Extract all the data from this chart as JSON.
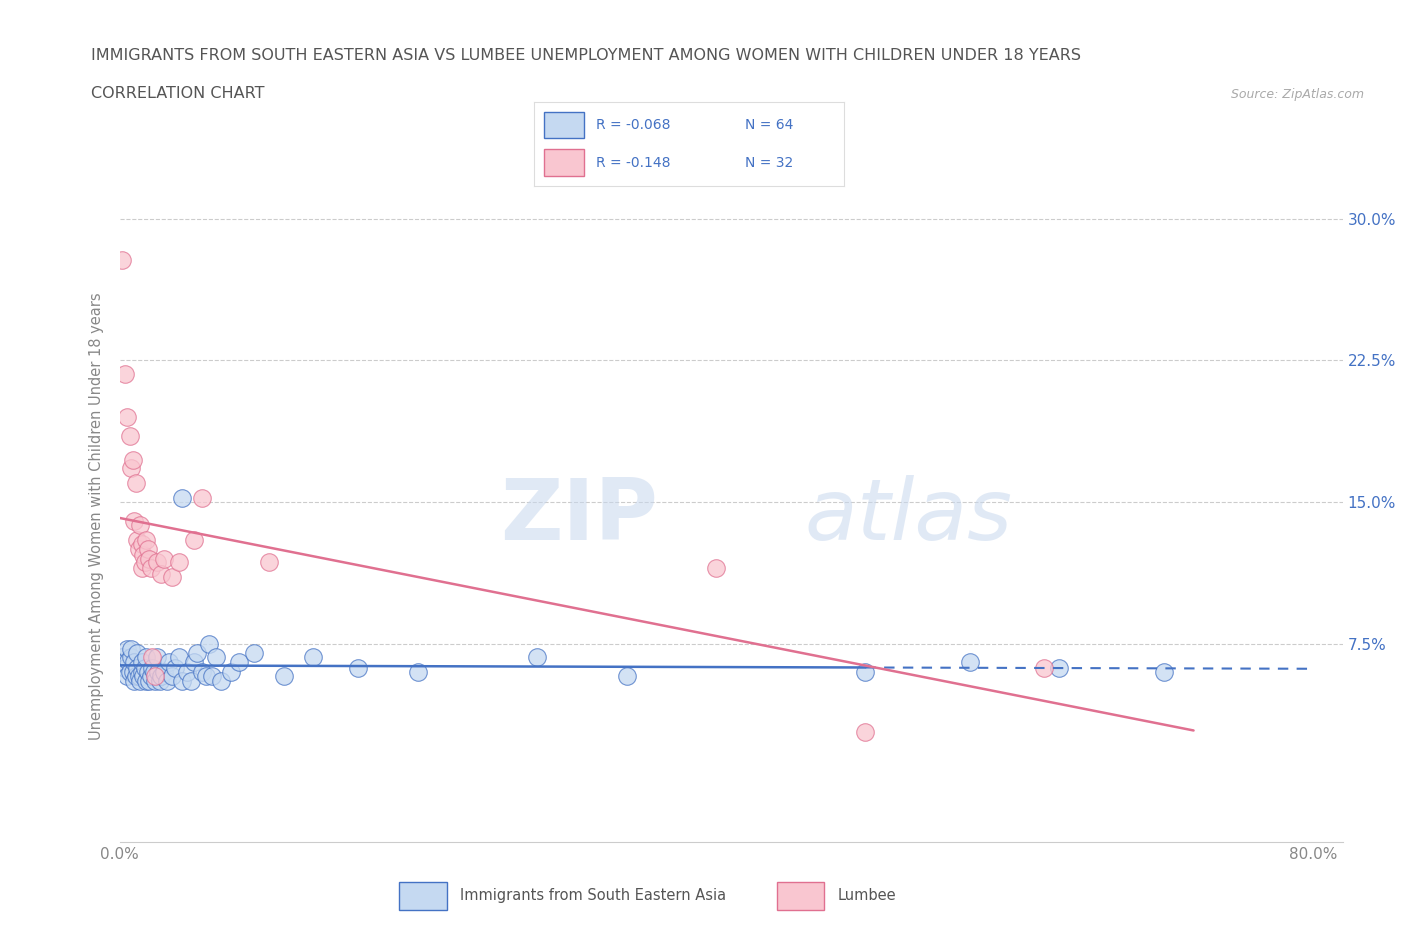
{
  "title_line1": "IMMIGRANTS FROM SOUTH EASTERN ASIA VS LUMBEE UNEMPLOYMENT AMONG WOMEN WITH CHILDREN UNDER 18 YEARS",
  "title_line2": "CORRELATION CHART",
  "source_text": "Source: ZipAtlas.com",
  "ylabel": "Unemployment Among Women with Children Under 18 years",
  "xlim": [
    0.0,
    0.82
  ],
  "ylim": [
    -0.03,
    0.315
  ],
  "ytick_positions": [
    0.075,
    0.15,
    0.225,
    0.3
  ],
  "ytick_labels": [
    "7.5%",
    "15.0%",
    "22.5%",
    "30.0%"
  ],
  "watermark_zip": "ZIP",
  "watermark_atlas": "atlas",
  "legend_blue_r": "-0.068",
  "legend_blue_n": "64",
  "legend_pink_r": "-0.148",
  "legend_pink_n": "32",
  "blue_fill": "#c5d9f1",
  "blue_edge": "#4472c4",
  "pink_fill": "#f9c6d0",
  "pink_edge": "#e07090",
  "blue_line_color": "#4472c4",
  "pink_line_color": "#e07090",
  "blue_scatter": [
    [
      0.002,
      0.068
    ],
    [
      0.003,
      0.065
    ],
    [
      0.004,
      0.062
    ],
    [
      0.005,
      0.058
    ],
    [
      0.005,
      0.072
    ],
    [
      0.006,
      0.066
    ],
    [
      0.007,
      0.06
    ],
    [
      0.008,
      0.068
    ],
    [
      0.008,
      0.072
    ],
    [
      0.009,
      0.06
    ],
    [
      0.01,
      0.065
    ],
    [
      0.01,
      0.055
    ],
    [
      0.011,
      0.058
    ],
    [
      0.012,
      0.07
    ],
    [
      0.012,
      0.062
    ],
    [
      0.013,
      0.058
    ],
    [
      0.014,
      0.055
    ],
    [
      0.015,
      0.06
    ],
    [
      0.015,
      0.065
    ],
    [
      0.016,
      0.058
    ],
    [
      0.017,
      0.062
    ],
    [
      0.018,
      0.068
    ],
    [
      0.018,
      0.055
    ],
    [
      0.019,
      0.06
    ],
    [
      0.02,
      0.055
    ],
    [
      0.021,
      0.058
    ],
    [
      0.022,
      0.062
    ],
    [
      0.023,
      0.06
    ],
    [
      0.024,
      0.055
    ],
    [
      0.025,
      0.068
    ],
    [
      0.026,
      0.06
    ],
    [
      0.027,
      0.055
    ],
    [
      0.028,
      0.058
    ],
    [
      0.03,
      0.06
    ],
    [
      0.032,
      0.055
    ],
    [
      0.033,
      0.065
    ],
    [
      0.035,
      0.058
    ],
    [
      0.037,
      0.062
    ],
    [
      0.04,
      0.068
    ],
    [
      0.042,
      0.055
    ],
    [
      0.042,
      0.152
    ],
    [
      0.045,
      0.06
    ],
    [
      0.048,
      0.055
    ],
    [
      0.05,
      0.065
    ],
    [
      0.052,
      0.07
    ],
    [
      0.055,
      0.06
    ],
    [
      0.058,
      0.058
    ],
    [
      0.06,
      0.075
    ],
    [
      0.062,
      0.058
    ],
    [
      0.065,
      0.068
    ],
    [
      0.068,
      0.055
    ],
    [
      0.075,
      0.06
    ],
    [
      0.08,
      0.065
    ],
    [
      0.09,
      0.07
    ],
    [
      0.11,
      0.058
    ],
    [
      0.13,
      0.068
    ],
    [
      0.16,
      0.062
    ],
    [
      0.2,
      0.06
    ],
    [
      0.28,
      0.068
    ],
    [
      0.34,
      0.058
    ],
    [
      0.5,
      0.06
    ],
    [
      0.57,
      0.065
    ],
    [
      0.63,
      0.062
    ],
    [
      0.7,
      0.06
    ]
  ],
  "pink_scatter": [
    [
      0.002,
      0.278
    ],
    [
      0.004,
      0.218
    ],
    [
      0.005,
      0.195
    ],
    [
      0.007,
      0.185
    ],
    [
      0.008,
      0.168
    ],
    [
      0.009,
      0.172
    ],
    [
      0.01,
      0.14
    ],
    [
      0.011,
      0.16
    ],
    [
      0.012,
      0.13
    ],
    [
      0.013,
      0.125
    ],
    [
      0.014,
      0.138
    ],
    [
      0.015,
      0.128
    ],
    [
      0.015,
      0.115
    ],
    [
      0.016,
      0.122
    ],
    [
      0.017,
      0.118
    ],
    [
      0.018,
      0.13
    ],
    [
      0.019,
      0.125
    ],
    [
      0.02,
      0.12
    ],
    [
      0.021,
      0.115
    ],
    [
      0.022,
      0.068
    ],
    [
      0.024,
      0.058
    ],
    [
      0.025,
      0.118
    ],
    [
      0.028,
      0.112
    ],
    [
      0.03,
      0.12
    ],
    [
      0.035,
      0.11
    ],
    [
      0.04,
      0.118
    ],
    [
      0.05,
      0.13
    ],
    [
      0.055,
      0.152
    ],
    [
      0.1,
      0.118
    ],
    [
      0.4,
      0.115
    ],
    [
      0.5,
      0.028
    ],
    [
      0.62,
      0.062
    ]
  ],
  "grid_color": "#cccccc",
  "background_color": "#ffffff",
  "title_color": "#555555",
  "axis_label_color": "#888888",
  "tick_label_color": "#888888",
  "right_tick_color": "#4472c4"
}
